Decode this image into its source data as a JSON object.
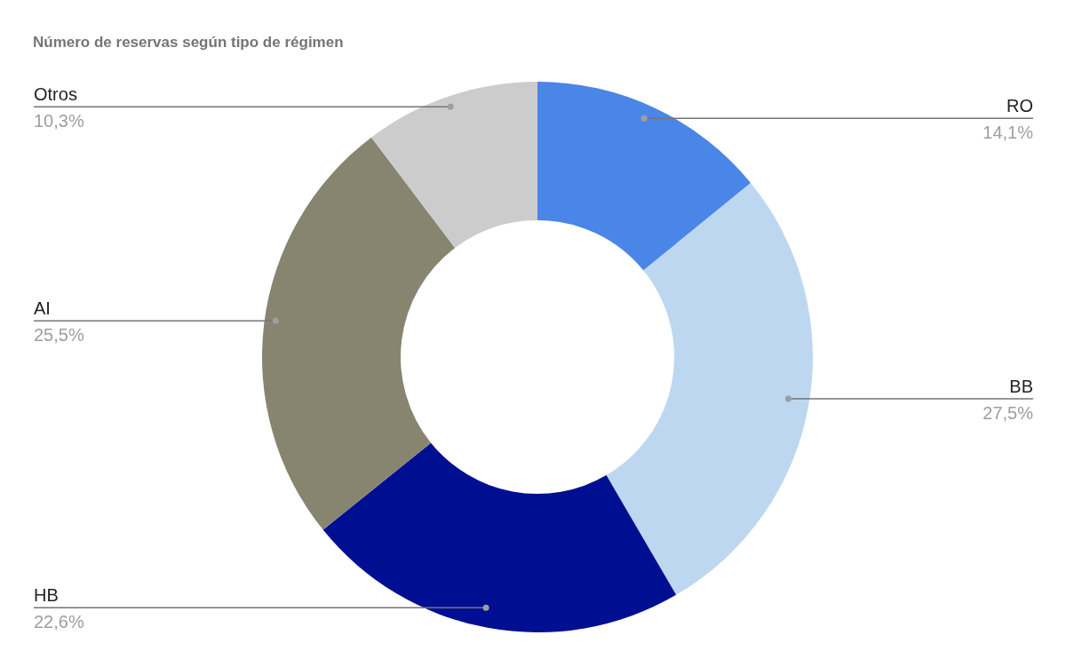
{
  "chart_data": {
    "type": "donut",
    "title": "Número de reservas según tipo de régimen",
    "categories": [
      "RO",
      "BB",
      "HB",
      "AI",
      "Otros"
    ],
    "values": [
      14.1,
      27.5,
      22.6,
      25.5,
      10.3
    ],
    "colors": [
      "#4a86e8",
      "#bdd7f0",
      "#000f92",
      "#878470",
      "#cccccc"
    ],
    "value_labels": [
      "14,1%",
      "27,5%",
      "22,6%",
      "25,5%",
      "10,3%"
    ]
  }
}
